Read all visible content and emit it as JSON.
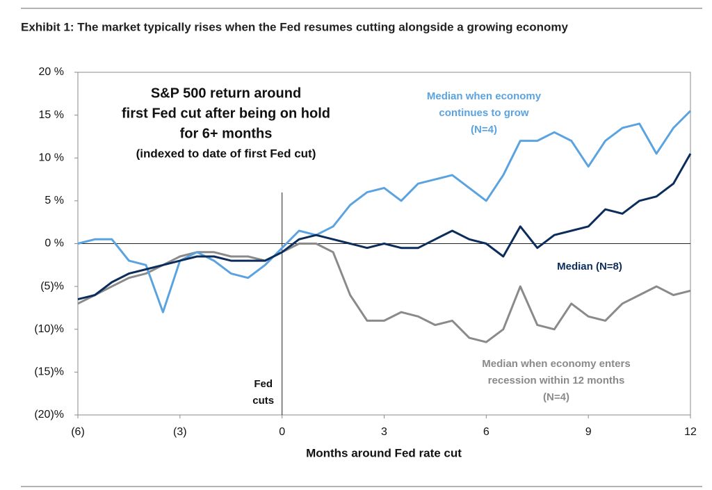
{
  "chart_data": {
    "type": "line",
    "title": "Exhibit 1: The market typically rises when the Fed resumes cutting alongside a growing economy",
    "inset_title": [
      "S&P 500 return around",
      "first Fed cut after being on hold",
      "for 6+ months",
      "(indexed to date of first Fed cut)"
    ],
    "x_label": "Months around Fed rate cut",
    "event_label": [
      "Fed",
      "cuts"
    ],
    "event_x": 0,
    "x": [
      -6,
      -5.5,
      -5,
      -4.5,
      -4,
      -3.5,
      -3,
      -2.5,
      -2,
      -1.5,
      -1,
      -0.5,
      0,
      0.5,
      1,
      1.5,
      2,
      2.5,
      3,
      3.5,
      4,
      4.5,
      5,
      5.5,
      6,
      6.5,
      7,
      7.5,
      8,
      8.5,
      9,
      9.5,
      10,
      10.5,
      11,
      11.5,
      12
    ],
    "series": [
      {
        "label": [
          "Median when economy enters",
          "recession within 12 months",
          "(N=4)"
        ],
        "color": "#8a8a8a",
        "values": [
          -7,
          -6,
          -5,
          -4,
          -3.5,
          -2.5,
          -1.5,
          -1,
          -1,
          -1.5,
          -1.5,
          -2,
          -1,
          0,
          0,
          -1,
          -6,
          -9,
          -9,
          -8,
          -8.5,
          -9.5,
          -9,
          -11,
          -11.5,
          -10,
          -5,
          -9.5,
          -10,
          -7,
          -8.5,
          -9,
          -7,
          -6,
          -5,
          -6,
          -5.5
        ]
      },
      {
        "label": [
          "Median when economy",
          "continues to grow",
          "(N=4)"
        ],
        "color": "#5ba3e0",
        "values": [
          0,
          0.5,
          0.5,
          -2,
          -2.5,
          -8,
          -2,
          -1,
          -2,
          -3.5,
          -4,
          -2.5,
          -0.5,
          1.5,
          1,
          2,
          4.5,
          6,
          6.5,
          5,
          7,
          7.5,
          8,
          6.5,
          5,
          8,
          12,
          12,
          13,
          12,
          9,
          12,
          13.5,
          14,
          10.5,
          13.5,
          15.5
        ]
      },
      {
        "label": [
          "Median (N=8)"
        ],
        "color": "#0c2d5c",
        "values": [
          -6.5,
          -6,
          -4.5,
          -3.5,
          -3,
          -2.5,
          -2,
          -1.5,
          -1.5,
          -2,
          -2,
          -2,
          -1,
          0.5,
          1,
          0.5,
          0,
          -0.5,
          0,
          -0.5,
          -0.5,
          0.5,
          1.5,
          0.5,
          0,
          -1.5,
          2,
          -0.5,
          1,
          1.5,
          2,
          4,
          3.5,
          5,
          5.5,
          7,
          10.5
        ]
      }
    ],
    "xlim": [
      -6,
      12
    ],
    "xticks": [
      {
        "value": -6,
        "label": "(6)"
      },
      {
        "value": -3,
        "label": "(3)"
      },
      0,
      3,
      6,
      9,
      12
    ],
    "ylim": [
      -20,
      20
    ],
    "yticks": [
      {
        "value": 20,
        "label": "20 %"
      },
      {
        "value": 15,
        "label": "15 %"
      },
      {
        "value": 10,
        "label": "10 %"
      },
      {
        "value": 5,
        "label": "5 %"
      },
      {
        "value": 0,
        "label": "0 %"
      },
      {
        "value": -5,
        "label": "(5)%"
      },
      {
        "value": -10,
        "label": "(10)%"
      },
      {
        "value": -15,
        "label": "(15)%"
      },
      {
        "value": -20,
        "label": "(20)%"
      }
    ]
  }
}
